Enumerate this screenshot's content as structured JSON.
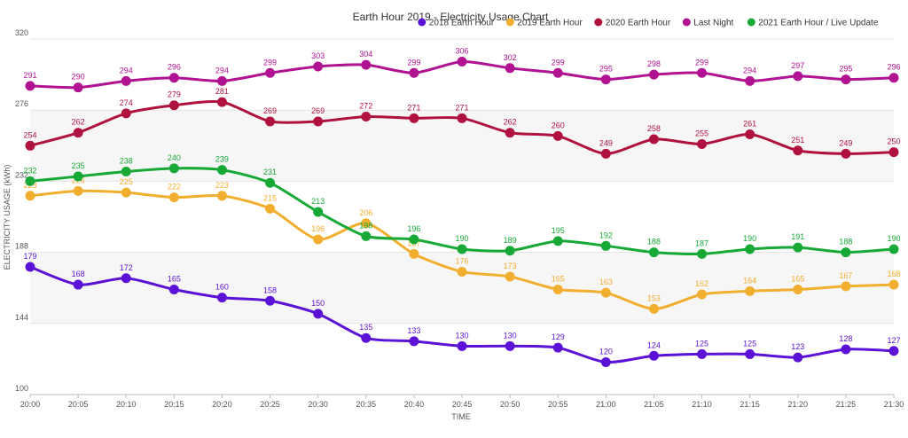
{
  "chart_data": {
    "type": "line",
    "title": "Earth Hour 2019 - Electricity Usage Chart",
    "xlabel": "TIME",
    "ylabel": "ELECTRICITY USAGE (kWh)",
    "ylim": [
      100,
      320
    ],
    "yticks": [
      100,
      144,
      188,
      232,
      276,
      320
    ],
    "categories": [
      "20:00",
      "20:05",
      "20:10",
      "20:15",
      "20:20",
      "20:25",
      "20:30",
      "20:35",
      "20:40",
      "20:45",
      "20:50",
      "20:55",
      "21:00",
      "21:05",
      "21:10",
      "21:15",
      "21:20",
      "21:25",
      "21:30"
    ],
    "legend_position": "top-right",
    "series": [
      {
        "name": "2018 Earth Hour",
        "color": "#5b12d6",
        "values": [
          179,
          168,
          172,
          165,
          160,
          158,
          150,
          135,
          133,
          130,
          130,
          129,
          120,
          124,
          125,
          125,
          123,
          128,
          127
        ]
      },
      {
        "name": "2019 Earth Hour",
        "color": "#f2ae2e",
        "values": [
          223,
          226,
          225,
          222,
          223,
          215,
          196,
          206,
          187,
          176,
          173,
          165,
          163,
          153,
          162,
          164,
          165,
          167,
          168
        ]
      },
      {
        "name": "2020 Earth Hour",
        "color": "#b0123f",
        "values": [
          254,
          262,
          274,
          279,
          281,
          269,
          269,
          272,
          271,
          271,
          262,
          260,
          249,
          258,
          255,
          261,
          251,
          249,
          250
        ]
      },
      {
        "name": "Last Night",
        "color": "#b01291",
        "values": [
          291,
          290,
          294,
          296,
          294,
          299,
          303,
          304,
          299,
          306,
          302,
          299,
          295,
          298,
          299,
          294,
          297,
          295,
          296
        ]
      },
      {
        "name": "2021 Earth Hour / Live Update",
        "color": "#17a836",
        "values": [
          232,
          235,
          238,
          240,
          239,
          231,
          213,
          198,
          196,
          190,
          189,
          195,
          192,
          188,
          187,
          190,
          191,
          188,
          190
        ]
      }
    ]
  }
}
